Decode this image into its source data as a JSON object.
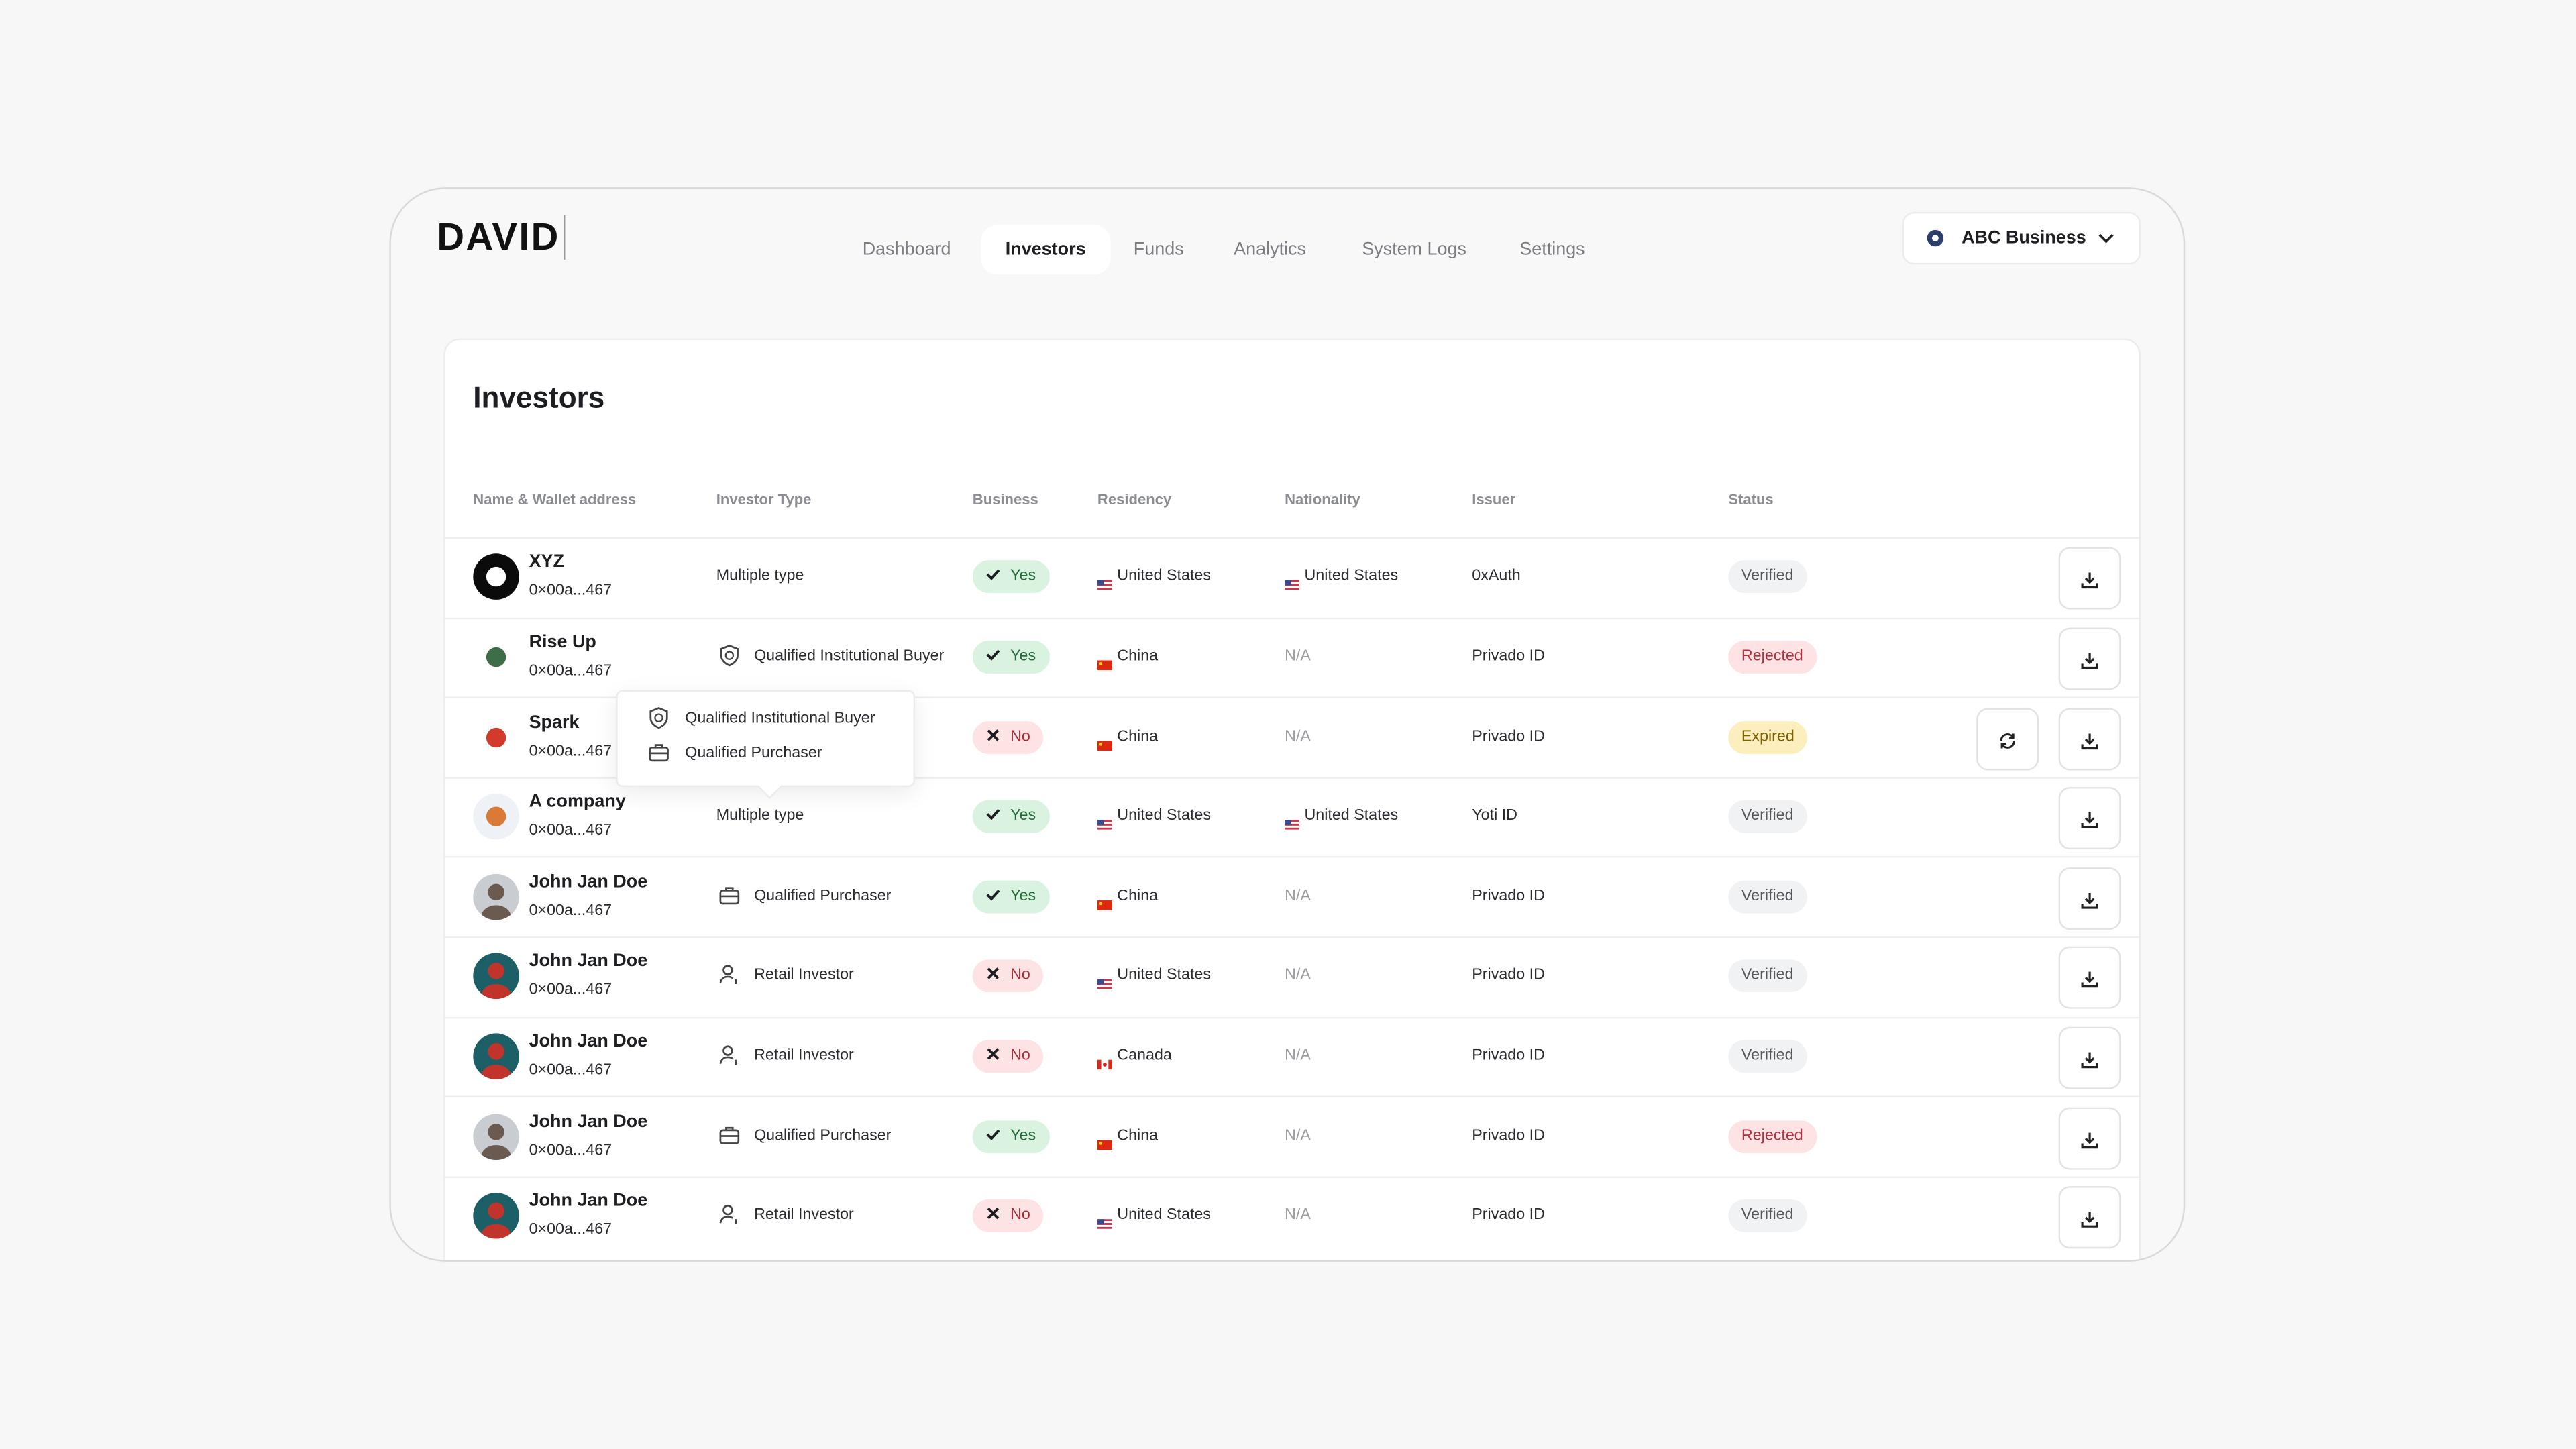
{
  "header": {
    "brand": "DAVID",
    "nav": [
      "Dashboard",
      "Investors",
      "Funds",
      "Analytics",
      "System Logs",
      "Settings"
    ],
    "active_nav": 1,
    "account": "ABC Business"
  },
  "page": {
    "title": "Investors",
    "columns": [
      "Name & Wallet address",
      "Investor Type",
      "Business",
      "Residency",
      "Nationality",
      "Issuer",
      "Status"
    ],
    "rows": [
      {
        "name": "XYZ",
        "wallet": "0×00a...467",
        "type": "Multiple type",
        "business": "Yes",
        "residency": "United States",
        "nationality": "United States",
        "issuer": "0xAuth",
        "status": "Verified"
      },
      {
        "name": "Rise Up",
        "wallet": "0×00a...467",
        "type": "Qualified Institutional Buyer",
        "business": "Yes",
        "residency": "China",
        "nationality": "N/A",
        "issuer": "Privado ID",
        "status": "Rejected"
      },
      {
        "name": "Spark",
        "wallet": "0×00a...467",
        "business": "No",
        "residency": "China",
        "nationality": "N/A",
        "issuer": "Privado ID",
        "status": "Expired"
      },
      {
        "name": "A company",
        "wallet": "0×00a...467",
        "type": "Multiple type",
        "business": "Yes",
        "residency": "United States",
        "nationality": "United States",
        "issuer": "Yoti ID",
        "status": "Verified"
      },
      {
        "name": "John Jan Doe",
        "wallet": "0×00a...467",
        "type": "Qualified Purchaser",
        "business": "Yes",
        "residency": "China",
        "nationality": "N/A",
        "issuer": "Privado ID",
        "status": "Verified"
      },
      {
        "name": "John Jan Doe",
        "wallet": "0×00a...467",
        "type": "Retail Investor",
        "business": "No",
        "residency": "United States",
        "nationality": "N/A",
        "issuer": "Privado ID",
        "status": "Verified"
      },
      {
        "name": "John Jan Doe",
        "wallet": "0×00a...467",
        "type": "Retail Investor",
        "business": "No",
        "residency": "Canada",
        "nationality": "N/A",
        "issuer": "Privado ID",
        "status": "Verified"
      },
      {
        "name": "John Jan Doe",
        "wallet": "0×00a...467",
        "type": "Qualified Purchaser",
        "business": "Yes",
        "residency": "China",
        "nationality": "N/A",
        "issuer": "Privado ID",
        "status": "Rejected"
      },
      {
        "name": "John Jan Doe",
        "wallet": "0×00a...467",
        "type": "Retail Investor",
        "business": "No",
        "residency": "United States",
        "nationality": "N/A",
        "issuer": "Privado ID",
        "status": "Verified"
      }
    ],
    "tooltip": [
      "Qualified Institutional Buyer",
      "Qualified Purchaser"
    ]
  }
}
